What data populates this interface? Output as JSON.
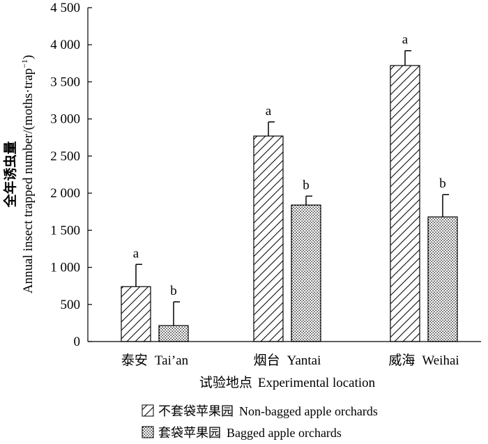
{
  "chart_data": {
    "type": "bar",
    "categories": [
      "泰安 Tai’an",
      "烟台 Yantai",
      "威海 Weihai"
    ],
    "category_labels": [
      {
        "cn": "泰安",
        "en": "Tai’an"
      },
      {
        "cn": "烟台",
        "en": "Yantai"
      },
      {
        "cn": "威海",
        "en": "Weihai"
      }
    ],
    "series": [
      {
        "name": "不套袋苹果园 Non-bagged apple orchards",
        "name_cn": "不套袋苹果园",
        "name_en": "Non-bagged apple orchards",
        "pattern": "hatch",
        "values": [
          740,
          2770,
          3720
        ],
        "errors": [
          300,
          190,
          200
        ],
        "letters": [
          "a",
          "a",
          "a"
        ]
      },
      {
        "name": "套袋苹果园 Bagged apple orchards",
        "name_cn": "套袋苹果园",
        "name_en": "Bagged apple orchards",
        "pattern": "dots",
        "values": [
          215,
          1840,
          1680
        ],
        "errors": [
          320,
          120,
          300
        ],
        "letters": [
          "b",
          "b",
          "b"
        ]
      }
    ],
    "ylim": [
      0,
      4500
    ],
    "yticks": [
      0,
      500,
      1000,
      1500,
      2000,
      2500,
      3000,
      3500,
      4000,
      4500
    ],
    "ytick_labels": [
      "0",
      "500",
      "1 000",
      "1 500",
      "2 000",
      "2 500",
      "3 000",
      "3 500",
      "4 000",
      "4 500"
    ],
    "ylabel_cn": "全年诱虫量",
    "ylabel_en": "Annual insect trapped number/(moths·trap",
    "ylabel_en_sup": "−1",
    "ylabel_en_end": ")",
    "xlabel_cn": "试验地点",
    "xlabel_en": "Experimental location",
    "legend_position": "bottom",
    "grid": false
  }
}
